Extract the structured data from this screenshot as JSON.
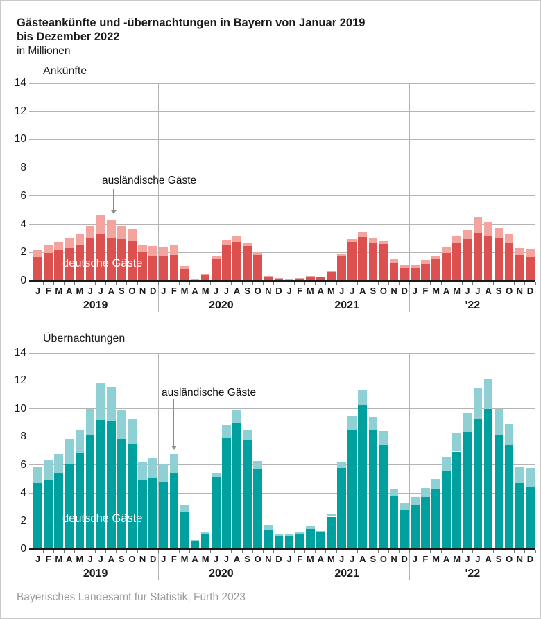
{
  "title": {
    "line1": "Gästeankünfte und -übernachtungen in Bayern von Januar 2019",
    "line2": "bis Dezember 2022",
    "subtitle": "in Millionen"
  },
  "footer": "Bayerisches Landesamt für Statistik, Fürth 2023",
  "months": [
    "J",
    "F",
    "M",
    "A",
    "M",
    "J",
    "J",
    "A",
    "S",
    "O",
    "N",
    "D"
  ],
  "years": [
    "2019",
    "2020",
    "2021",
    "'22"
  ],
  "legend": {
    "domestic_label": "deutsche Gäste",
    "foreign_label": "ausländische Gäste"
  },
  "colors": {
    "arrivals_domestic": "#DC5050",
    "arrivals_foreign": "#F4A49E",
    "nights_domestic": "#00A09E",
    "nights_foreign": "#8FD0D4",
    "grid": "#b3b3b3",
    "axis": "#1a1a1a"
  },
  "chart_data": [
    {
      "type": "bar",
      "stacked": true,
      "title": "Ankünfte",
      "unit": "Millionen",
      "ylim": [
        0,
        14
      ],
      "ystep": 2,
      "x_years": [
        "2019",
        "2020",
        "2021",
        "'22"
      ],
      "series": [
        {
          "name": "deutsche Gäste",
          "values": [
            1.65,
            1.95,
            2.15,
            2.3,
            2.55,
            3.0,
            3.35,
            3.05,
            2.95,
            2.8,
            2.0,
            1.75,
            1.75,
            1.8,
            0.85,
            0.1,
            0.38,
            1.55,
            2.5,
            2.75,
            2.45,
            1.8,
            0.3,
            0.17,
            0.1,
            0.18,
            0.3,
            0.25,
            0.65,
            1.75,
            2.75,
            3.1,
            2.7,
            2.6,
            1.25,
            0.9,
            0.9,
            1.2,
            1.5,
            1.95,
            2.65,
            2.95,
            3.4,
            3.2,
            3.0,
            2.65,
            1.8,
            1.65
          ]
        },
        {
          "name": "ausländische Gäste",
          "values": [
            0.55,
            0.55,
            0.6,
            0.7,
            0.8,
            0.9,
            1.3,
            1.2,
            0.95,
            0.85,
            0.55,
            0.7,
            0.65,
            0.75,
            0.2,
            0.02,
            0.04,
            0.15,
            0.4,
            0.4,
            0.25,
            0.2,
            0.05,
            0.03,
            0.02,
            0.02,
            0.03,
            0.03,
            0.05,
            0.15,
            0.2,
            0.35,
            0.35,
            0.25,
            0.25,
            0.2,
            0.2,
            0.25,
            0.25,
            0.45,
            0.5,
            0.65,
            1.1,
            1.0,
            0.75,
            0.7,
            0.5,
            0.6
          ]
        }
      ]
    },
    {
      "type": "bar",
      "stacked": true,
      "title": "Übernachtungen",
      "unit": "Millionen",
      "ylim": [
        0,
        14
      ],
      "ystep": 2,
      "x_years": [
        "2019",
        "2020",
        "2021",
        "'22"
      ],
      "series": [
        {
          "name": "deutsche Gäste",
          "values": [
            4.7,
            4.95,
            5.4,
            6.1,
            6.85,
            8.1,
            9.2,
            9.15,
            7.85,
            7.5,
            4.95,
            5.05,
            4.75,
            5.4,
            2.65,
            0.6,
            1.1,
            5.15,
            7.9,
            9.0,
            7.75,
            5.75,
            1.4,
            0.95,
            0.95,
            1.1,
            1.45,
            1.2,
            2.3,
            5.8,
            8.5,
            10.3,
            8.45,
            7.4,
            3.75,
            2.75,
            3.15,
            3.7,
            4.3,
            5.55,
            6.95,
            8.35,
            9.3,
            10.0,
            8.1,
            7.4,
            4.7,
            4.4
          ]
        },
        {
          "name": "ausländische Gäste",
          "values": [
            1.2,
            1.4,
            1.4,
            1.7,
            1.6,
            1.9,
            2.65,
            2.45,
            2.05,
            1.8,
            1.25,
            1.45,
            1.3,
            1.4,
            0.45,
            0.05,
            0.15,
            0.3,
            0.95,
            0.9,
            0.7,
            0.55,
            0.3,
            0.15,
            0.1,
            0.15,
            0.2,
            0.1,
            0.2,
            0.45,
            1.0,
            1.1,
            1.0,
            1.0,
            0.55,
            0.55,
            0.55,
            0.65,
            0.7,
            1.0,
            1.3,
            1.35,
            2.2,
            2.1,
            1.9,
            1.55,
            1.15,
            1.4
          ]
        }
      ]
    }
  ]
}
